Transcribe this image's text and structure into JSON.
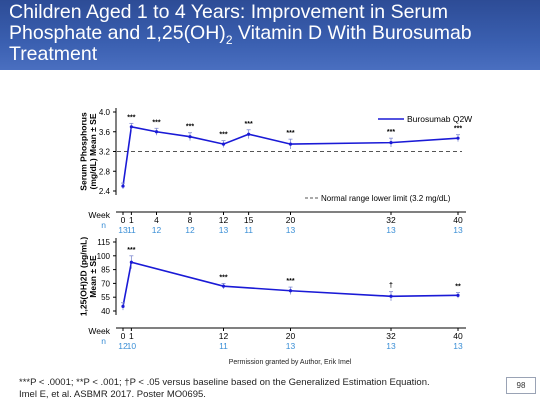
{
  "slide": {
    "title_line1": "Children Aged 1 to 4 Years: Improvement in Serum",
    "title_line2_pre": "Phosphate and 1,25(OH)",
    "title_sub": "2",
    "title_line2_post": " Vitamin D With Burosumab",
    "title_line3": "Treatment",
    "permission": "Permission granted by Author, Erik Imel",
    "footnote_line1": "***P < .0001; **P < .001; †P < .05 versus baseline based on the Generalized Estimation Equation.",
    "footnote_line2": "Imel E, et al. ASBMR 2017. Poster MO0695.",
    "page_number": "98"
  },
  "colors": {
    "header_bg": "#3a5fb0",
    "series": "#1a1ad6",
    "n_text": "#3b8fd6",
    "ref_line": "#555555"
  },
  "chart_data": [
    {
      "type": "line",
      "ylabel": "Serum Phosphorus (mg/dL) Mean ± SE",
      "ylim": [
        2.4,
        4.0
      ],
      "yticks": [
        "4.0",
        "3.6",
        "3.2",
        "2.8",
        "2.4"
      ],
      "x_label": "Week",
      "x": [
        0,
        1,
        4,
        8,
        12,
        15,
        20,
        32,
        40
      ],
      "x_ticks": [
        "0",
        "1",
        "4",
        "8",
        "12",
        "15",
        "20",
        "32",
        "40"
      ],
      "n_label": "n",
      "n_values": [
        "13",
        "11",
        "12",
        "12",
        "13",
        "11",
        "13",
        "13",
        "13"
      ],
      "series": [
        {
          "name": "Burosumab Q2W",
          "values": [
            2.5,
            3.7,
            3.6,
            3.5,
            3.35,
            3.55,
            3.35,
            3.38,
            3.47
          ],
          "errors": [
            0.06,
            0.07,
            0.07,
            0.08,
            0.07,
            0.09,
            0.1,
            0.09,
            0.07
          ],
          "sig": [
            "",
            "***",
            "***",
            "***",
            "***",
            "***",
            "***",
            "***",
            "***"
          ]
        }
      ],
      "reference_line": {
        "value": 3.2,
        "label": "Normal range lower limit (3.2 mg/dL)"
      },
      "legend": "top-right"
    },
    {
      "type": "line",
      "ylabel": "1,25(OH)2D (pg/mL) Mean ± SE",
      "ylim": [
        40,
        115
      ],
      "yticks": [
        "115",
        "100",
        "85",
        "70",
        "55",
        "40"
      ],
      "x_label": "Week",
      "x": [
        0,
        1,
        12,
        20,
        32,
        40
      ],
      "x_ticks": [
        "0",
        "1",
        "12",
        "20",
        "32",
        "40"
      ],
      "n_label": "n",
      "n_values": [
        "12",
        "10",
        "11",
        "13",
        "13",
        "13"
      ],
      "series": [
        {
          "name": "",
          "values": [
            45,
            93,
            67,
            62,
            56,
            57
          ],
          "errors": [
            4,
            7,
            3,
            4,
            5,
            3
          ],
          "sig": [
            "",
            "***",
            "***",
            "***",
            "†",
            "**"
          ]
        }
      ]
    }
  ]
}
